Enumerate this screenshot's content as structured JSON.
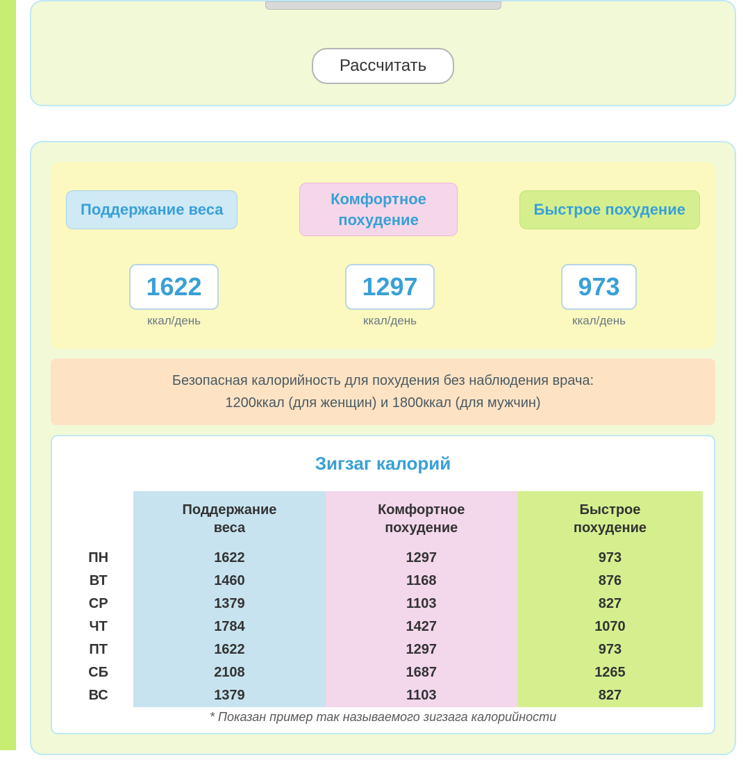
{
  "form": {
    "calculate_label": "Рассчитать"
  },
  "results": {
    "labels": {
      "maintain": "Поддержание веса",
      "comfort_line1": "Комфортное",
      "comfort_line2": "похудение",
      "fast": "Быстрое похудение"
    },
    "values": {
      "maintain": "1622",
      "comfort": "1297",
      "fast": "973",
      "unit": "ккал/день"
    },
    "note_line1": "Безопасная калорийность для похудения без наблюдения врача:",
    "note_line2": "1200ккал (для женщин) и 1800ккал (для мужчин)"
  },
  "zigzag": {
    "title": "Зигзаг калорий",
    "headers": {
      "c1_l1": "Поддержание",
      "c1_l2": "веса",
      "c2_l1": "Комфортное",
      "c2_l2": "похудение",
      "c3_l1": "Быстрое",
      "c3_l2": "похудение"
    },
    "colors": {
      "c1_bg": "#c7e3ef",
      "c2_bg": "#f3d7eb",
      "c3_bg": "#d5ef8f"
    },
    "days": [
      "ПН",
      "ВТ",
      "СР",
      "ЧТ",
      "ПТ",
      "СБ",
      "ВС"
    ],
    "rows": [
      {
        "day": "ПН",
        "c1": "1622",
        "c2": "1297",
        "c3": "973"
      },
      {
        "day": "ВТ",
        "c1": "1460",
        "c2": "1168",
        "c3": "876"
      },
      {
        "day": "СР",
        "c1": "1379",
        "c2": "1103",
        "c3": "827"
      },
      {
        "day": "ЧТ",
        "c1": "1784",
        "c2": "1427",
        "c3": "1070"
      },
      {
        "day": "ПТ",
        "c1": "1622",
        "c2": "1297",
        "c3": "973"
      },
      {
        "day": "СБ",
        "c1": "2108",
        "c2": "1687",
        "c3": "1265"
      },
      {
        "day": "ВС",
        "c1": "1379",
        "c2": "1103",
        "c3": "827"
      }
    ],
    "footnote": "* Показан пример так называемого зигзага калорийности"
  }
}
